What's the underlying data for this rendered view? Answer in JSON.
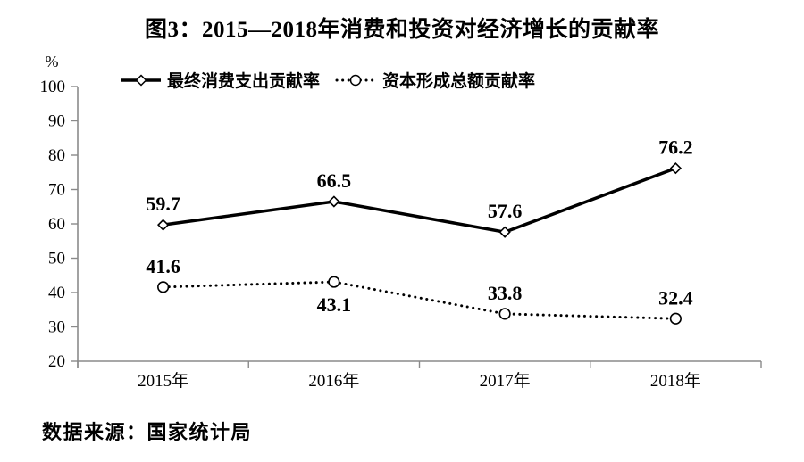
{
  "title": "图3：2015—2018年消费和投资对经济增长的贡献率",
  "source": "数据来源：国家统计局",
  "colors": {
    "series_line": "#000000",
    "axis": "#8a8a8a",
    "text": "#000000",
    "marker_fill": "#ffffff",
    "background": "#ffffff"
  },
  "chart_data": {
    "type": "line",
    "categories": [
      "2015年",
      "2016年",
      "2017年",
      "2018年"
    ],
    "series": [
      {
        "name": "最终消费支出贡献率",
        "line_style": "solid",
        "marker": "diamond",
        "values": [
          59.7,
          66.5,
          57.6,
          76.2
        ],
        "value_labels": [
          "59.7",
          "66.5",
          "57.6",
          "76.2"
        ],
        "label_positions": [
          "above",
          "above",
          "above",
          "above"
        ]
      },
      {
        "name": "资本形成总额贡献率",
        "line_style": "dotted",
        "marker": "circle",
        "values": [
          41.6,
          43.1,
          33.8,
          32.4
        ],
        "value_labels": [
          "41.6",
          "43.1",
          "33.8",
          "32.4"
        ],
        "label_positions": [
          "above",
          "below",
          "above",
          "above"
        ]
      }
    ],
    "ylabel": "%",
    "ylim": [
      20,
      100
    ],
    "ytick_step": 10,
    "yticks": [
      "20",
      "30",
      "40",
      "50",
      "60",
      "70",
      "80",
      "90",
      "100"
    ],
    "grid": false,
    "legend_position": "top"
  }
}
